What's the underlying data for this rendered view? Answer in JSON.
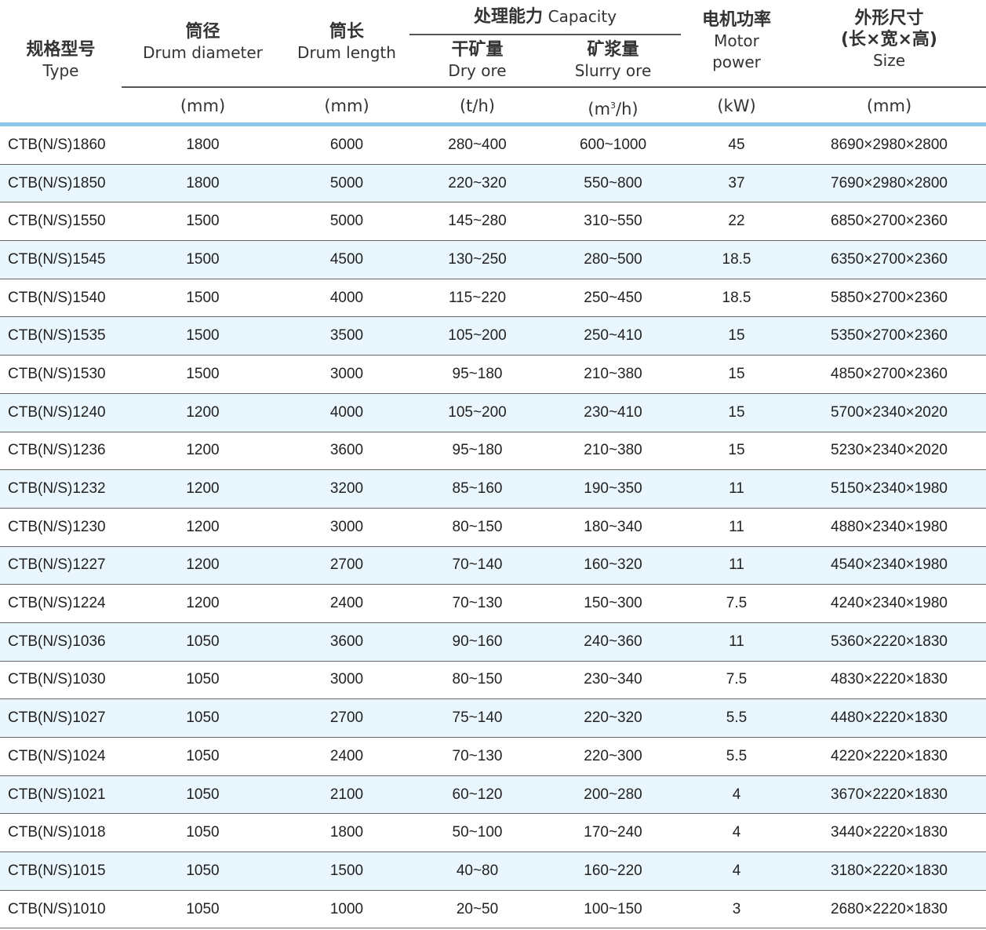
{
  "header": {
    "type": {
      "cn": "规格型号",
      "en": "Type"
    },
    "drum_diameter": {
      "cn": "筒径",
      "en": "Drum diameter",
      "unit": "(mm)"
    },
    "drum_length": {
      "cn": "筒长",
      "en": "Drum length",
      "unit": "(mm)"
    },
    "capacity": {
      "cn": "处理能力",
      "en": "Capacity"
    },
    "dry_ore": {
      "cn": "干矿量",
      "en": "Dry ore",
      "unit": "(t/h)"
    },
    "slurry_ore": {
      "cn": "矿浆量",
      "en": "Slurry ore",
      "unit_pre": "(m",
      "unit_sup": "3",
      "unit_post": "/h)"
    },
    "motor_power": {
      "cn": "电机功率",
      "en1": "Motor",
      "en2": "power",
      "unit": "(kW)"
    },
    "size": {
      "cn": "外形尺寸",
      "cn2": "(长×宽×高)",
      "en": "Size",
      "unit": "(mm)"
    }
  },
  "accent_color": "#8cc6e6",
  "stripe_color": "#eaf6fd",
  "rows": [
    [
      "CTB(N/S)1860",
      "1800",
      "6000",
      "280~400",
      "600~1000",
      "45",
      "8690×2980×2800"
    ],
    [
      "CTB(N/S)1850",
      "1800",
      "5000",
      "220~320",
      "550~800",
      "37",
      "7690×2980×2800"
    ],
    [
      "CTB(N/S)1550",
      "1500",
      "5000",
      "145~280",
      "310~550",
      "22",
      "6850×2700×2360"
    ],
    [
      "CTB(N/S)1545",
      "1500",
      "4500",
      "130~250",
      "280~500",
      "18.5",
      "6350×2700×2360"
    ],
    [
      "CTB(N/S)1540",
      "1500",
      "4000",
      "115~220",
      "250~450",
      "18.5",
      "5850×2700×2360"
    ],
    [
      "CTB(N/S)1535",
      "1500",
      "3500",
      "105~200",
      "250~410",
      "15",
      "5350×2700×2360"
    ],
    [
      "CTB(N/S)1530",
      "1500",
      "3000",
      "95~180",
      "210~380",
      "15",
      "4850×2700×2360"
    ],
    [
      "CTB(N/S)1240",
      "1200",
      "4000",
      "105~200",
      "230~410",
      "15",
      "5700×2340×2020"
    ],
    [
      "CTB(N/S)1236",
      "1200",
      "3600",
      "95~180",
      "210~380",
      "15",
      "5230×2340×2020"
    ],
    [
      "CTB(N/S)1232",
      "1200",
      "3200",
      "85~160",
      "190~350",
      "11",
      "5150×2340×1980"
    ],
    [
      "CTB(N/S)1230",
      "1200",
      "3000",
      "80~150",
      "180~340",
      "11",
      "4880×2340×1980"
    ],
    [
      "CTB(N/S)1227",
      "1200",
      "2700",
      "70~140",
      "160~320",
      "11",
      "4540×2340×1980"
    ],
    [
      "CTB(N/S)1224",
      "1200",
      "2400",
      "70~130",
      "150~300",
      "7.5",
      "4240×2340×1980"
    ],
    [
      "CTB(N/S)1036",
      "1050",
      "3600",
      "90~160",
      "240~360",
      "11",
      "5360×2220×1830"
    ],
    [
      "CTB(N/S)1030",
      "1050",
      "3000",
      "80~150",
      "230~340",
      "7.5",
      "4830×2220×1830"
    ],
    [
      "CTB(N/S)1027",
      "1050",
      "2700",
      "75~140",
      "220~320",
      "5.5",
      "4480×2220×1830"
    ],
    [
      "CTB(N/S)1024",
      "1050",
      "2400",
      "70~130",
      "220~300",
      "5.5",
      "4220×2220×1830"
    ],
    [
      "CTB(N/S)1021",
      "1050",
      "2100",
      "60~120",
      "200~280",
      "4",
      "3670×2220×1830"
    ],
    [
      "CTB(N/S)1018",
      "1050",
      "1800",
      "50~100",
      "170~240",
      "4",
      "3440×2220×1830"
    ],
    [
      "CTB(N/S)1015",
      "1050",
      "1500",
      "40~80",
      "160~220",
      "4",
      "3180×2220×1830"
    ],
    [
      "CTB(N/S)1010",
      "1050",
      "1000",
      "20~50",
      "100~150",
      "3",
      "2680×2220×1830"
    ]
  ]
}
